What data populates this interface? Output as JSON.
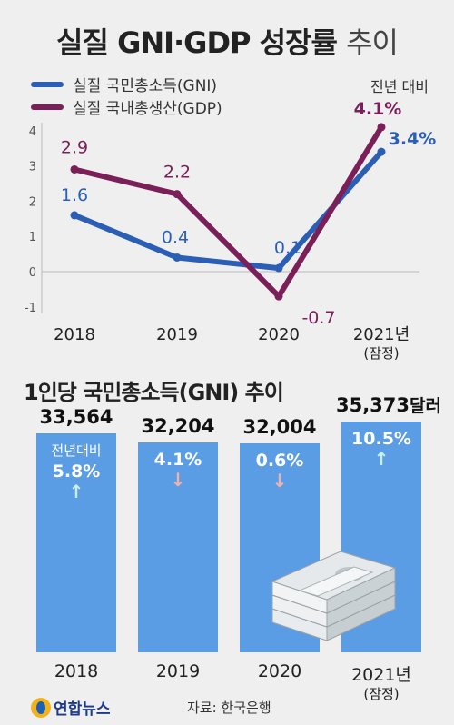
{
  "title": {
    "bold": "실질 GNI·GDP 성장률",
    "light": "추이"
  },
  "legend": [
    {
      "label": "실질 국민총소득(GNI)",
      "color": "#2a5fb5"
    },
    {
      "label": "실질 국내총생산(GDP)",
      "color": "#7a1f57"
    }
  ],
  "unit_note": "전년 대비",
  "subtitle": "1인당 국민총소득(GNI) 추이",
  "bar_unit": "달러",
  "growth_note": "전년대비",
  "footer": {
    "logo": "연합뉴스",
    "source": "자료: 한국은행"
  },
  "chart_data": [
    {
      "type": "line",
      "title": "실질 GNI·GDP 성장률 추이",
      "categories": [
        "2018",
        "2019",
        "2020",
        "2021년"
      ],
      "category_sub": [
        "",
        "",
        "",
        "(잠정)"
      ],
      "ylim": [
        -1,
        4
      ],
      "yticks": [
        "-1",
        "0",
        "1",
        "2",
        "3",
        "4"
      ],
      "grid": false,
      "series": [
        {
          "name": "실질 국민총소득(GNI)",
          "values": [
            1.6,
            0.4,
            0.1,
            3.4
          ],
          "labels": [
            "1.6",
            "0.4",
            "0.1",
            "3.4%"
          ],
          "color": "#2a5fb5"
        },
        {
          "name": "실질 국내총생산(GDP)",
          "values": [
            2.9,
            2.2,
            -0.7,
            4.1
          ],
          "labels": [
            "2.9",
            "2.2",
            "-0.7",
            "4.1%"
          ],
          "color": "#7a1f57"
        }
      ]
    },
    {
      "type": "bar",
      "title": "1인당 국민총소득(GNI) 추이",
      "categories": [
        "2018",
        "2019",
        "2020",
        "2021년"
      ],
      "category_sub": [
        "",
        "",
        "",
        "(잠정)"
      ],
      "values": [
        33564,
        32204,
        32004,
        35373
      ],
      "value_labels": [
        "33,564",
        "32,204",
        "32,004",
        "35,373"
      ],
      "growth": [
        "5.8%",
        "4.1%",
        "0.6%",
        "10.5%"
      ],
      "growth_direction": [
        "up",
        "down",
        "down",
        "up"
      ],
      "color": "#5b9de4"
    }
  ]
}
